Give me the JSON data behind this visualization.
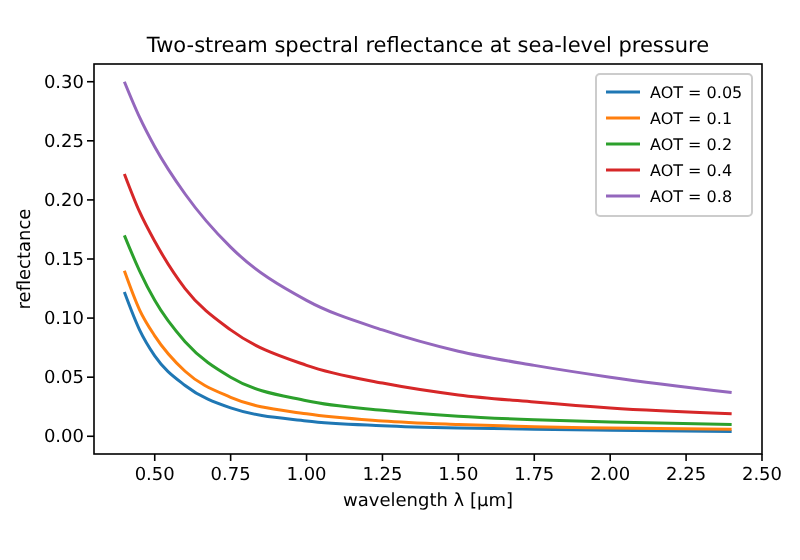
{
  "chart_data": {
    "type": "line",
    "title": "Two-stream spectral reflectance at sea-level pressure",
    "xlabel": "wavelength λ [μm]",
    "ylabel": "reflectance",
    "x": [
      0.4,
      0.45,
      0.5,
      0.6,
      0.75,
      1.0,
      1.25,
      1.5,
      1.75,
      2.0,
      2.4
    ],
    "series": [
      {
        "name": "AOT = 0.05",
        "color": "#1f77b4",
        "values": [
          0.122,
          0.09,
          0.068,
          0.043,
          0.024,
          0.013,
          0.009,
          0.007,
          0.006,
          0.005,
          0.004
        ]
      },
      {
        "name": "AOT = 0.1",
        "color": "#ff7f0e",
        "values": [
          0.14,
          0.107,
          0.085,
          0.055,
          0.033,
          0.019,
          0.013,
          0.01,
          0.008,
          0.007,
          0.006
        ]
      },
      {
        "name": "AOT = 0.2",
        "color": "#2ca02c",
        "values": [
          0.17,
          0.14,
          0.115,
          0.08,
          0.05,
          0.03,
          0.022,
          0.017,
          0.014,
          0.012,
          0.01
        ]
      },
      {
        "name": "AOT = 0.4",
        "color": "#d62728",
        "values": [
          0.222,
          0.19,
          0.165,
          0.125,
          0.09,
          0.06,
          0.045,
          0.035,
          0.029,
          0.024,
          0.019
        ]
      },
      {
        "name": "AOT = 0.8",
        "color": "#9467bd",
        "values": [
          0.3,
          0.27,
          0.245,
          0.205,
          0.16,
          0.115,
          0.09,
          0.072,
          0.06,
          0.05,
          0.037
        ]
      }
    ],
    "xlim": [
      0.3,
      2.5
    ],
    "xticks": [
      {
        "value": 0.5,
        "label": "0.50"
      },
      {
        "value": 0.75,
        "label": "0.75"
      },
      {
        "value": 1,
        "label": "1.00"
      },
      {
        "value": 1.25,
        "label": "1.25"
      },
      {
        "value": 1.5,
        "label": "1.50"
      },
      {
        "value": 1.75,
        "label": "1.75"
      },
      {
        "value": 2,
        "label": "2.00"
      },
      {
        "value": 2.25,
        "label": "2.25"
      },
      {
        "value": 2.5,
        "label": "2.50"
      }
    ],
    "ylim": [
      -0.015,
      0.315
    ],
    "yticks": [
      {
        "value": 0,
        "label": "0.00"
      },
      {
        "value": 0.05,
        "label": "0.05"
      },
      {
        "value": 0.1,
        "label": "0.10"
      },
      {
        "value": 0.15,
        "label": "0.15"
      },
      {
        "value": 0.2,
        "label": "0.20"
      },
      {
        "value": 0.25,
        "label": "0.25"
      },
      {
        "value": 0.3,
        "label": "0.30"
      }
    ],
    "legend": "top right",
    "grid": false,
    "line_style": "solid"
  }
}
